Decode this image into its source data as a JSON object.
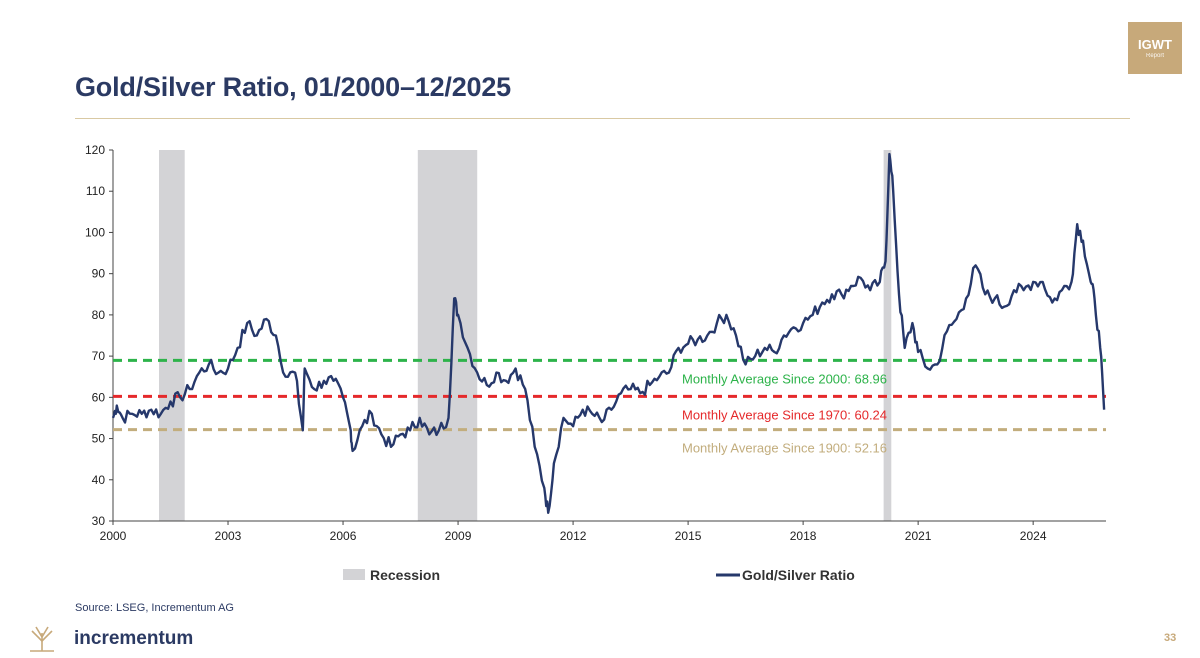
{
  "page": {
    "title": "Gold/Silver Ratio, 01/2000–12/2025",
    "source": "Source: LSEG, Incrementum AG",
    "brand": "incrementum",
    "badge_line1": "IGWT",
    "badge_line2": "Report",
    "page_number": "33"
  },
  "colors": {
    "title": "#2b3a63",
    "series": "#26386b",
    "recession": "#d3d3d6",
    "avg2000": "#2db34a",
    "avg1970": "#e5292b",
    "avg1900": "#c2ad7d",
    "brand_gold": "#c7a97a"
  },
  "chart_data": {
    "type": "line",
    "title": "Gold/Silver Ratio, 01/2000–12/2025",
    "xlabel": "",
    "ylabel": "",
    "xlim": [
      2000,
      2025.9
    ],
    "ylim": [
      30,
      120
    ],
    "x_ticks": [
      2000,
      2003,
      2006,
      2009,
      2012,
      2015,
      2018,
      2021,
      2024
    ],
    "x_tick_labels": [
      "2000",
      "2003",
      "2006",
      "2009",
      "2012",
      "2015",
      "2018",
      "2021",
      "2024"
    ],
    "y_ticks": [
      30,
      40,
      50,
      60,
      70,
      80,
      90,
      100,
      110,
      120
    ],
    "y_tick_labels": [
      "30",
      "40",
      "50",
      "60",
      "70",
      "80",
      "90",
      "100",
      "110",
      "120"
    ],
    "legend": [
      {
        "name": "Recession",
        "kind": "bar"
      },
      {
        "name": "Gold/Silver Ratio",
        "kind": "line"
      }
    ],
    "legend_position": "bottom",
    "recessions": [
      {
        "start": 2001.2,
        "end": 2001.87
      },
      {
        "start": 2007.95,
        "end": 2009.5
      },
      {
        "start": 2020.1,
        "end": 2020.3
      }
    ],
    "reference_lines": [
      {
        "label": "Monthly Average Since 2000: 68.96",
        "value": 68.96,
        "color_key": "avg2000"
      },
      {
        "label": "Monthly Average Since 1970: 60.24",
        "value": 60.24,
        "color_key": "avg1970"
      },
      {
        "label": "Monthly Average Since 1900: 52.16",
        "value": 52.16,
        "color_key": "avg1900"
      }
    ],
    "series": [
      {
        "name": "Gold/Silver Ratio",
        "points": [
          [
            2000.0,
            55
          ],
          [
            2000.1,
            58
          ],
          [
            2000.25,
            55
          ],
          [
            2000.5,
            56
          ],
          [
            2000.75,
            56
          ],
          [
            2001.0,
            57
          ],
          [
            2001.25,
            56
          ],
          [
            2001.5,
            59
          ],
          [
            2001.75,
            60
          ],
          [
            2002.0,
            62
          ],
          [
            2002.25,
            66
          ],
          [
            2002.5,
            68
          ],
          [
            2002.75,
            66
          ],
          [
            2003.0,
            67
          ],
          [
            2003.25,
            72
          ],
          [
            2003.5,
            78
          ],
          [
            2003.75,
            75
          ],
          [
            2004.0,
            79
          ],
          [
            2004.25,
            75
          ],
          [
            2004.5,
            65
          ],
          [
            2004.75,
            66
          ],
          [
            2004.95,
            52
          ],
          [
            2005.0,
            67
          ],
          [
            2005.25,
            62
          ],
          [
            2005.5,
            64
          ],
          [
            2005.75,
            64
          ],
          [
            2006.0,
            60
          ],
          [
            2006.2,
            52
          ],
          [
            2006.25,
            47
          ],
          [
            2006.5,
            53
          ],
          [
            2006.75,
            56
          ],
          [
            2007.0,
            51
          ],
          [
            2007.25,
            48
          ],
          [
            2007.5,
            51
          ],
          [
            2007.75,
            52
          ],
          [
            2008.0,
            55
          ],
          [
            2008.25,
            51
          ],
          [
            2008.5,
            52
          ],
          [
            2008.75,
            55
          ],
          [
            2008.9,
            84
          ],
          [
            2009.0,
            80
          ],
          [
            2009.25,
            72
          ],
          [
            2009.5,
            66
          ],
          [
            2009.75,
            63
          ],
          [
            2010.0,
            66
          ],
          [
            2010.25,
            64
          ],
          [
            2010.5,
            67
          ],
          [
            2010.75,
            62
          ],
          [
            2011.0,
            48
          ],
          [
            2011.25,
            38
          ],
          [
            2011.35,
            32
          ],
          [
            2011.5,
            44
          ],
          [
            2011.75,
            55
          ],
          [
            2012.0,
            53
          ],
          [
            2012.25,
            57
          ],
          [
            2012.5,
            56
          ],
          [
            2012.75,
            54
          ],
          [
            2013.0,
            57
          ],
          [
            2013.25,
            61
          ],
          [
            2013.5,
            62
          ],
          [
            2013.75,
            61
          ],
          [
            2014.0,
            63
          ],
          [
            2014.25,
            65
          ],
          [
            2014.5,
            66
          ],
          [
            2014.75,
            72
          ],
          [
            2015.0,
            73
          ],
          [
            2015.25,
            74
          ],
          [
            2015.5,
            75
          ],
          [
            2015.75,
            78
          ],
          [
            2016.0,
            80
          ],
          [
            2016.25,
            75
          ],
          [
            2016.5,
            68
          ],
          [
            2016.75,
            70
          ],
          [
            2017.0,
            72
          ],
          [
            2017.25,
            71
          ],
          [
            2017.5,
            75
          ],
          [
            2017.75,
            77
          ],
          [
            2018.0,
            78
          ],
          [
            2018.25,
            80
          ],
          [
            2018.5,
            83
          ],
          [
            2018.75,
            85
          ],
          [
            2019.0,
            85
          ],
          [
            2019.25,
            87
          ],
          [
            2019.5,
            89
          ],
          [
            2019.75,
            86
          ],
          [
            2020.0,
            88
          ],
          [
            2020.15,
            93
          ],
          [
            2020.25,
            119
          ],
          [
            2020.35,
            110
          ],
          [
            2020.5,
            85
          ],
          [
            2020.65,
            72
          ],
          [
            2020.85,
            78
          ],
          [
            2021.0,
            71
          ],
          [
            2021.25,
            67
          ],
          [
            2021.5,
            68
          ],
          [
            2021.75,
            76
          ],
          [
            2022.0,
            79
          ],
          [
            2022.25,
            84
          ],
          [
            2022.5,
            92
          ],
          [
            2022.75,
            85
          ],
          [
            2023.0,
            84
          ],
          [
            2023.25,
            82
          ],
          [
            2023.5,
            86
          ],
          [
            2023.75,
            86
          ],
          [
            2024.0,
            88
          ],
          [
            2024.25,
            88
          ],
          [
            2024.5,
            83
          ],
          [
            2024.75,
            86
          ],
          [
            2025.0,
            88
          ],
          [
            2025.15,
            102
          ],
          [
            2025.3,
            98
          ],
          [
            2025.5,
            88
          ],
          [
            2025.6,
            84
          ],
          [
            2025.75,
            72
          ],
          [
            2025.85,
            57
          ]
        ]
      }
    ]
  }
}
